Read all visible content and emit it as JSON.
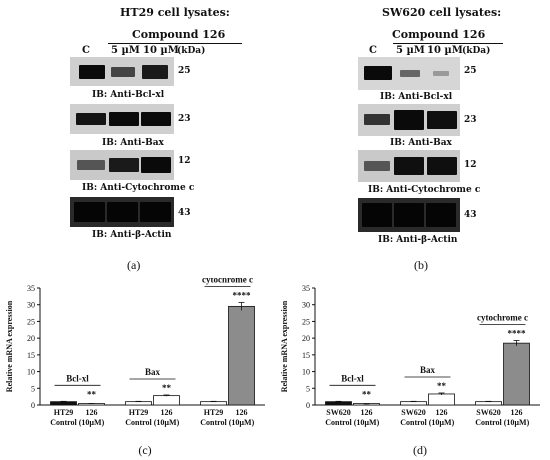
{
  "panel_a": {
    "header": "HT29 cell lysates:",
    "compound": "Compound 126",
    "lanes": [
      "C",
      "5 µM",
      "10 µM"
    ],
    "unit": "(kDa)",
    "blots": [
      {
        "label": "IB: Anti-Bcl-xl",
        "mw": "25"
      },
      {
        "label": "IB: Anti-Bax",
        "mw": "23"
      },
      {
        "label": "IB: Anti-Cytochrome c",
        "mw": "12"
      },
      {
        "label": "IB: Anti-β-Actin",
        "mw": "43"
      }
    ],
    "caption": "(a)"
  },
  "panel_b": {
    "header": "SW620 cell lysates:",
    "compound": "Compound 126",
    "lanes": [
      "C",
      "5 µM",
      "10 µM"
    ],
    "unit": "(kDa)",
    "blots": [
      {
        "label": "IB: Anti-Bcl-xl",
        "mw": "25"
      },
      {
        "label": "IB: Anti-Bax",
        "mw": "23"
      },
      {
        "label": "IB: Anti-Cytochrome c",
        "mw": "12"
      },
      {
        "label": "IB: Anti-β-Actin",
        "mw": "43"
      }
    ],
    "caption": "(b)"
  },
  "chart_data": [
    {
      "type": "bar",
      "ylabel": "Relative mRNA expression",
      "ylim": [
        0,
        35
      ],
      "yticks": [
        0,
        5,
        10,
        15,
        20,
        25,
        30,
        35
      ],
      "categories": [
        [
          "HT29",
          "Control"
        ],
        [
          "126",
          "(10µM)"
        ],
        [
          "HT29",
          "Control"
        ],
        [
          "126",
          "(10µM)"
        ],
        [
          "HT29",
          "Control"
        ],
        [
          "126",
          "(10µM)"
        ]
      ],
      "values": [
        1.0,
        0.4,
        1.0,
        2.8,
        1.0,
        29.5
      ],
      "errors": [
        0.1,
        0.05,
        0.1,
        0.2,
        0.1,
        1.2
      ],
      "fills": [
        "#111111",
        "#ffffff",
        "#ffffff",
        "#ffffff",
        "#ffffff",
        "#8c8c8c"
      ],
      "groups": [
        {
          "label": "Bcl-xl",
          "significance": "**"
        },
        {
          "label": "Bax",
          "significance": "**"
        },
        {
          "label": "cytochrome c",
          "significance": "****"
        }
      ],
      "caption": "(c)"
    },
    {
      "type": "bar",
      "ylabel": "Relative mRNA expression",
      "ylim": [
        0,
        35
      ],
      "yticks": [
        0,
        5,
        10,
        15,
        20,
        25,
        30,
        35
      ],
      "categories": [
        [
          "SW620",
          "Control"
        ],
        [
          "126",
          "(10µM)"
        ],
        [
          "SW620",
          "Control"
        ],
        [
          "126",
          "(10µM)"
        ],
        [
          "SW620",
          "Control"
        ],
        [
          "126",
          "(10µM)"
        ]
      ],
      "values": [
        1.0,
        0.3,
        1.0,
        3.3,
        1.0,
        18.5
      ],
      "errors": [
        0.1,
        0.05,
        0.1,
        0.3,
        0.1,
        0.8
      ],
      "fills": [
        "#111111",
        "#ffffff",
        "#ffffff",
        "#ffffff",
        "#ffffff",
        "#8c8c8c"
      ],
      "groups": [
        {
          "label": "Bcl-xl",
          "significance": "**"
        },
        {
          "label": "Bax",
          "significance": "**"
        },
        {
          "label": "cytochrome c",
          "significance": "****"
        }
      ],
      "caption": "(d)"
    }
  ]
}
